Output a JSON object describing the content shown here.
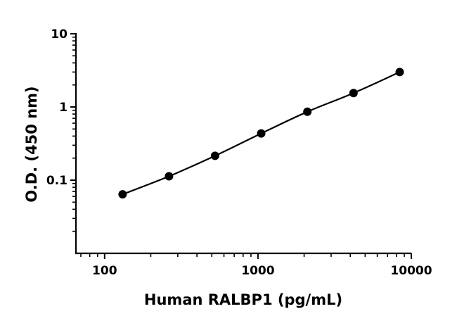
{
  "chart_data": {
    "type": "scatter",
    "title": "",
    "xlabel": "Human RALBP1 (pg/mL)",
    "ylabel": "O.D. (450 nm)",
    "xscale": "log",
    "yscale": "log",
    "xlim": [
      65,
      10000
    ],
    "ylim": [
      0.01,
      10
    ],
    "xticks": [
      100,
      1000,
      10000
    ],
    "xtick_labels": [
      "100",
      "1000",
      "10000"
    ],
    "yticks": [
      0.1,
      1,
      10
    ],
    "ytick_labels": [
      "0.1",
      "1",
      "10"
    ],
    "grid": false,
    "legend": "none",
    "series": [
      {
        "x": [
          131,
          263,
          525,
          1050,
          2100,
          4200,
          8400
        ],
        "y": [
          0.064,
          0.113,
          0.215,
          0.435,
          0.86,
          1.55,
          3.0
        ],
        "marker_color": "#000000",
        "fit_line": "smooth curve"
      }
    ]
  }
}
